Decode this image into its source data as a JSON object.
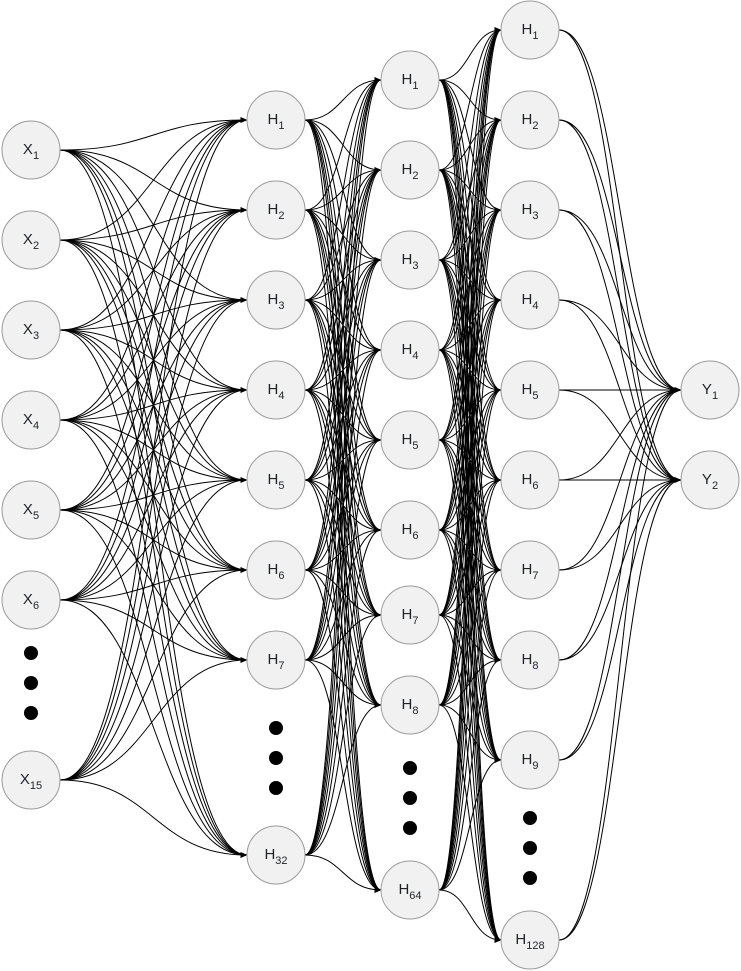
{
  "colors": {
    "node_fill": "#f1f1f1",
    "node_stroke": "#9a9a9a",
    "edge": "#000000",
    "text": "#1f2329"
  },
  "layers": [
    {
      "id": "input",
      "nodes": [
        {
          "base": "X",
          "sub": "1"
        },
        {
          "base": "X",
          "sub": "2"
        },
        {
          "base": "X",
          "sub": "3"
        },
        {
          "base": "X",
          "sub": "4"
        },
        {
          "base": "X",
          "sub": "5"
        },
        {
          "base": "X",
          "sub": "6"
        },
        {
          "base": "X",
          "sub": "15"
        }
      ]
    },
    {
      "id": "hidden1",
      "nodes": [
        {
          "base": "H",
          "sub": "1"
        },
        {
          "base": "H",
          "sub": "2"
        },
        {
          "base": "H",
          "sub": "3"
        },
        {
          "base": "H",
          "sub": "4"
        },
        {
          "base": "H",
          "sub": "5"
        },
        {
          "base": "H",
          "sub": "6"
        },
        {
          "base": "H",
          "sub": "7"
        },
        {
          "base": "H",
          "sub": "32"
        }
      ]
    },
    {
      "id": "hidden2",
      "nodes": [
        {
          "base": "H",
          "sub": "1"
        },
        {
          "base": "H",
          "sub": "2"
        },
        {
          "base": "H",
          "sub": "3"
        },
        {
          "base": "H",
          "sub": "4"
        },
        {
          "base": "H",
          "sub": "5"
        },
        {
          "base": "H",
          "sub": "6"
        },
        {
          "base": "H",
          "sub": "7"
        },
        {
          "base": "H",
          "sub": "8"
        },
        {
          "base": "H",
          "sub": "64"
        }
      ]
    },
    {
      "id": "hidden3",
      "nodes": [
        {
          "base": "H",
          "sub": "1"
        },
        {
          "base": "H",
          "sub": "2"
        },
        {
          "base": "H",
          "sub": "3"
        },
        {
          "base": "H",
          "sub": "4"
        },
        {
          "base": "H",
          "sub": "5"
        },
        {
          "base": "H",
          "sub": "6"
        },
        {
          "base": "H",
          "sub": "7"
        },
        {
          "base": "H",
          "sub": "8"
        },
        {
          "base": "H",
          "sub": "9"
        },
        {
          "base": "H",
          "sub": "128"
        }
      ]
    },
    {
      "id": "output",
      "nodes": [
        {
          "base": "Y",
          "sub": "1"
        },
        {
          "base": "Y",
          "sub": "2"
        }
      ]
    }
  ],
  "ellipses": 4
}
